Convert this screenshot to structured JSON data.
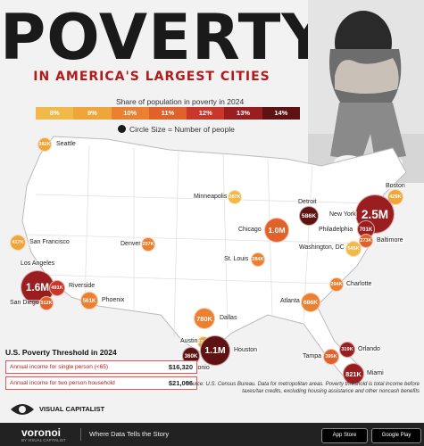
{
  "header": {
    "title": "POVERTY",
    "subtitle": "IN AMERICA'S LARGEST CITIES"
  },
  "legend": {
    "title": "Share of population in poverty in 2024",
    "circle_note": "Circle Size = Number of people",
    "bins": [
      {
        "label": "8%",
        "color": "#f2b84a"
      },
      {
        "label": "9%",
        "color": "#f0a53a"
      },
      {
        "label": "10%",
        "color": "#ea8030"
      },
      {
        "label": "11%",
        "color": "#e0622a"
      },
      {
        "label": "12%",
        "color": "#c8372a"
      },
      {
        "label": "13%",
        "color": "#9a1e20"
      },
      {
        "label": "14%",
        "color": "#5e1212"
      }
    ]
  },
  "cities": [
    {
      "name": "Seattle",
      "value": "382K",
      "color": "#f0a53a"
    },
    {
      "name": "Minneapolis",
      "value": "287K",
      "color": "#f2b84a"
    },
    {
      "name": "Boston",
      "value": "429K",
      "color": "#f0a53a"
    },
    {
      "name": "Detroit",
      "value": "586K",
      "color": "#5e1212"
    },
    {
      "name": "New York",
      "value": "2.5M",
      "color": "#9a1e20"
    },
    {
      "name": "Philadelphia",
      "value": "701K",
      "color": "#9a1e20"
    },
    {
      "name": "Baltimore",
      "value": "273K",
      "color": "#e0622a"
    },
    {
      "name": "Washington, DC",
      "value": "545K",
      "color": "#f2b84a"
    },
    {
      "name": "Chicago",
      "value": "1.0M",
      "color": "#e0622a"
    },
    {
      "name": "San Francisco",
      "value": "417K",
      "color": "#f0a53a"
    },
    {
      "name": "Denver",
      "value": "257K",
      "color": "#ea8030"
    },
    {
      "name": "St. Louis",
      "value": "284K",
      "color": "#ea8030"
    },
    {
      "name": "Los Angeles",
      "value": "1.6M",
      "color": "#9a1e20"
    },
    {
      "name": "Riverside",
      "value": "491K",
      "color": "#c8372a"
    },
    {
      "name": "San Diego",
      "value": "312K",
      "color": "#e0622a"
    },
    {
      "name": "Phoenix",
      "value": "561K",
      "color": "#ea8030"
    },
    {
      "name": "Charlotte",
      "value": "294K",
      "color": "#ea8030"
    },
    {
      "name": "Atlanta",
      "value": "686K",
      "color": "#ea8030"
    },
    {
      "name": "Dallas",
      "value": "780K",
      "color": "#ea8030"
    },
    {
      "name": "Austin",
      "value": "230K",
      "color": "#f0a53a"
    },
    {
      "name": "Houston",
      "value": "1.1M",
      "color": "#5e1212"
    },
    {
      "name": "San Antonio",
      "value": "360K",
      "color": "#5e1212"
    },
    {
      "name": "Orlando",
      "value": "319K",
      "color": "#9a1e20"
    },
    {
      "name": "Tampa",
      "value": "395K",
      "color": "#e0622a"
    },
    {
      "name": "Miami",
      "value": "821K",
      "color": "#9a1e20"
    }
  ],
  "threshold": {
    "title": "U.S. Poverty Threshold in 2024",
    "rows": [
      {
        "label": "Annual income for single person (<65)",
        "value": "$16,320"
      },
      {
        "label": "Annual income for two person household",
        "value": "$21,006"
      }
    ]
  },
  "source": "Source: U.S. Census Bureau. Data for metropolitan areas. Poverty threshold is total income before taxes/tax credits, excluding housing assistance and other noncash benefits",
  "brand": {
    "vc": "VISUAL CAPITALIST",
    "voronoi": "voronoi",
    "by": "BY VISUAL CAPITALIST",
    "tagline": "Where Data Tells the Story",
    "app_store": "App Store",
    "google_play": "Google Play"
  }
}
